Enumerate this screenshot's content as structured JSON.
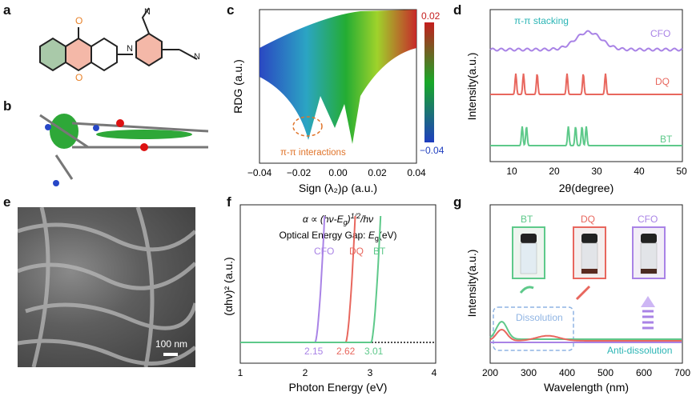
{
  "panels": {
    "a": "a",
    "b": "b",
    "c": "c",
    "d": "d",
    "e": "e",
    "f": "f",
    "g": "g"
  },
  "panel_c": {
    "ylabel": "RDG (a.u.)",
    "xlabel_html": "Sign (λ₂)ρ (a.u.)",
    "xticks": [
      "−0.04",
      "−0.02",
      "0.00",
      "0.02",
      "0.04"
    ],
    "colorbar_max": "0.02",
    "colorbar_min": "−0.04",
    "annotation": "π-π interactions",
    "colors": {
      "red": "#c41e1e",
      "green": "#18a828",
      "blue": "#1f3ebf",
      "accent": "#e0742a"
    }
  },
  "panel_d": {
    "ylabel": "Intensity(a.u.)",
    "xlabel": "2θ(degree)",
    "xticks": [
      "10",
      "20",
      "30",
      "40",
      "50"
    ],
    "annotation": "π-π stacking",
    "series": [
      {
        "name": "CFO",
        "color": "#a983e6"
      },
      {
        "name": "DQ",
        "color": "#e8675e"
      },
      {
        "name": "BT",
        "color": "#5ec98a"
      }
    ]
  },
  "panel_e": {
    "scale_bar": "100 nm"
  },
  "panel_f": {
    "formula_parts": [
      "α ∝ (hν-E",
      "g",
      ")",
      "1/2",
      "/hν"
    ],
    "subtitle_parts": [
      "Optical Energy Gap: ",
      "E",
      "g",
      "(eV)"
    ],
    "ylabel": "(αhν)² (a.u.)",
    "xlabel": "Photon Energy (eV)",
    "xticks": [
      "1",
      "2",
      "3",
      "4"
    ],
    "series": [
      {
        "name": "CFO",
        "gap": "2.15",
        "color": "#a983e6"
      },
      {
        "name": "DQ",
        "gap": "2.62",
        "color": "#e8675e"
      },
      {
        "name": "BT",
        "gap": "3.01",
        "color": "#5ec98a"
      }
    ]
  },
  "panel_g": {
    "ylabel": "Intensity(a.u.)",
    "xlabel": "Wavelength (nm)",
    "xticks": [
      "200",
      "300",
      "400",
      "500",
      "600",
      "700"
    ],
    "vials": [
      "BT",
      "DQ",
      "CFO"
    ],
    "dissolution": "Dissolution",
    "anti_dissolution": "Anti-dissolution",
    "colors": {
      "BT": "#5ec98a",
      "DQ": "#e8675e",
      "CFO": "#a983e6",
      "box": "#8fb4e3",
      "anti": "#2bb5b5"
    }
  },
  "chart_data": [
    {
      "type": "line",
      "panel": "d",
      "xlabel": "2θ(degree)",
      "ylabel": "Intensity(a.u.)",
      "xlim": [
        5,
        50
      ],
      "series": [
        {
          "name": "CFO",
          "peaks_2theta": [
            28
          ]
        },
        {
          "name": "DQ",
          "peaks_2theta": [
            11,
            12.8,
            16,
            23,
            26.8,
            32
          ]
        },
        {
          "name": "BT",
          "peaks_2theta": [
            12.5,
            13.5,
            23.3,
            25,
            26.5,
            27.5
          ]
        }
      ]
    },
    {
      "type": "line",
      "panel": "f",
      "xlabel": "Photon Energy (eV)",
      "ylabel": "(αhν)² (a.u.)",
      "xlim": [
        1,
        4
      ],
      "series": [
        {
          "name": "CFO",
          "band_gap_eV": 2.15
        },
        {
          "name": "DQ",
          "band_gap_eV": 2.62
        },
        {
          "name": "BT",
          "band_gap_eV": 3.01
        }
      ]
    },
    {
      "type": "line",
      "panel": "g",
      "xlabel": "Wavelength (nm)",
      "ylabel": "Intensity(a.u.)",
      "xlim": [
        200,
        700
      ],
      "series": [
        {
          "name": "BT",
          "peaks_nm": [
            230
          ]
        },
        {
          "name": "DQ",
          "peaks_nm": [
            230,
            350
          ]
        },
        {
          "name": "CFO",
          "peaks_nm": []
        }
      ]
    }
  ]
}
